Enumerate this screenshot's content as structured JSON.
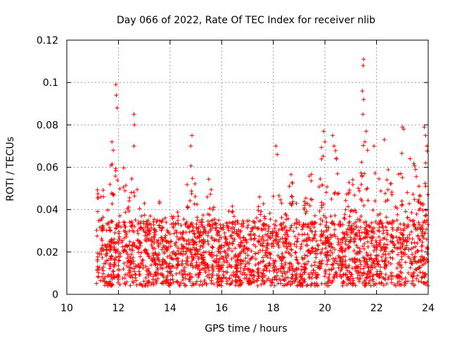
{
  "chart_data": {
    "type": "scatter",
    "title": "Day 066 of 2022, Rate Of TEC Index for receiver nlib",
    "xlabel": "GPS time / hours",
    "ylabel": "ROTI / TECUs",
    "xlim": [
      10,
      24
    ],
    "ylim": [
      0,
      0.12
    ],
    "x_ticks": [
      10,
      12,
      14,
      16,
      18,
      20,
      22,
      24
    ],
    "x_tick_labels": [
      "10",
      "12",
      "14",
      "16",
      "18",
      "20",
      "22",
      "24"
    ],
    "y_ticks": [
      0,
      0.02,
      0.04,
      0.06,
      0.08,
      0.1,
      0.12
    ],
    "y_tick_labels": [
      "0",
      "0.02",
      "0.04",
      "0.06",
      "0.08",
      "0.1",
      "0.12"
    ],
    "grid": true,
    "marker": "plus",
    "color": "#ff0000",
    "series": [
      {
        "name": "ROTI",
        "x_start": 11.15,
        "x_end": 24.0,
        "baseline_range": [
          0.004,
          0.035
        ],
        "notable_points": [
          {
            "x": 11.9,
            "y": 0.099
          },
          {
            "x": 11.92,
            "y": 0.094
          },
          {
            "x": 11.95,
            "y": 0.088
          },
          {
            "x": 12.6,
            "y": 0.085
          },
          {
            "x": 12.62,
            "y": 0.08
          },
          {
            "x": 12.6,
            "y": 0.07
          },
          {
            "x": 11.75,
            "y": 0.072
          },
          {
            "x": 11.8,
            "y": 0.068
          },
          {
            "x": 14.85,
            "y": 0.075
          },
          {
            "x": 14.8,
            "y": 0.07
          },
          {
            "x": 18.1,
            "y": 0.07
          },
          {
            "x": 18.15,
            "y": 0.066
          },
          {
            "x": 19.95,
            "y": 0.077
          },
          {
            "x": 20.0,
            "y": 0.072
          },
          {
            "x": 20.3,
            "y": 0.075
          },
          {
            "x": 20.35,
            "y": 0.07
          },
          {
            "x": 21.5,
            "y": 0.111
          },
          {
            "x": 21.48,
            "y": 0.108
          },
          {
            "x": 21.45,
            "y": 0.096
          },
          {
            "x": 21.5,
            "y": 0.092
          },
          {
            "x": 21.47,
            "y": 0.085
          },
          {
            "x": 21.6,
            "y": 0.077
          },
          {
            "x": 21.55,
            "y": 0.072
          },
          {
            "x": 21.65,
            "y": 0.068
          },
          {
            "x": 21.9,
            "y": 0.07
          },
          {
            "x": 22.3,
            "y": 0.073
          },
          {
            "x": 23.0,
            "y": 0.079
          },
          {
            "x": 23.05,
            "y": 0.078
          },
          {
            "x": 23.3,
            "y": 0.064
          },
          {
            "x": 23.85,
            "y": 0.079
          },
          {
            "x": 23.9,
            "y": 0.075
          },
          {
            "x": 23.95,
            "y": 0.07
          },
          {
            "x": 23.9,
            "y": 0.062
          }
        ]
      }
    ]
  }
}
